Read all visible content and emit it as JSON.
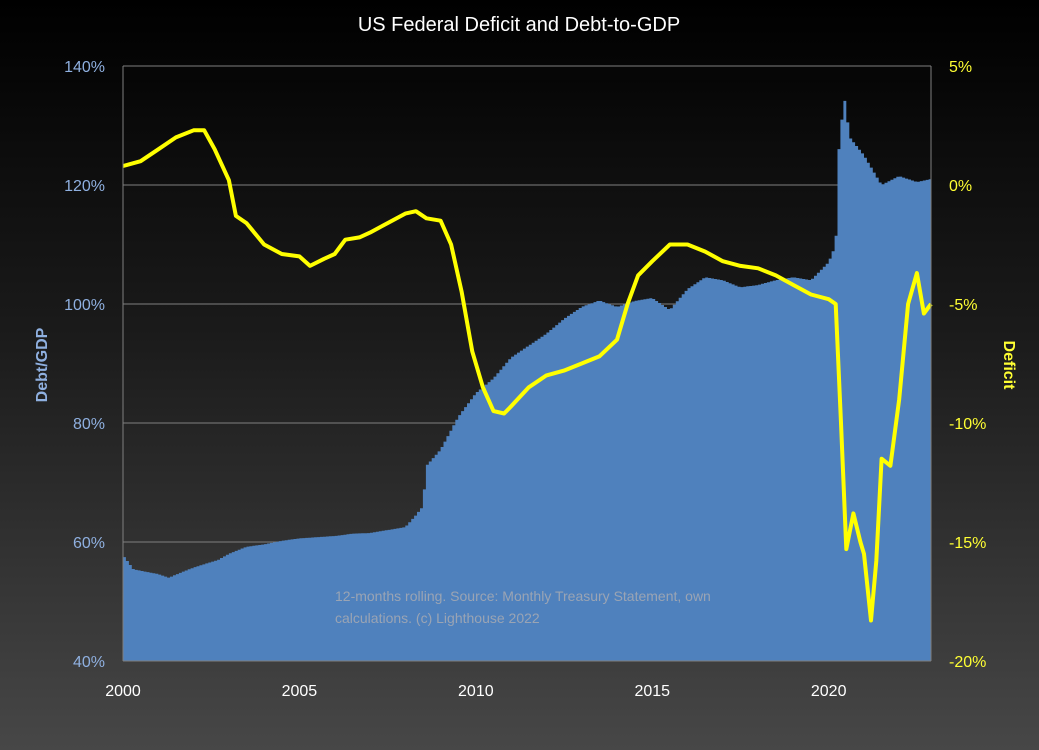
{
  "colors": {
    "debt_fill": "#4f81bd",
    "deficit_line": "#ffff00",
    "grid": "#7f7f7f",
    "left_axis_text": "#8fb0e0",
    "right_axis_text": "#ffff33"
  },
  "chart_data": {
    "type": "bar",
    "title": "US Federal Deficit and Debt-to-GDP",
    "ylabel": "Debt/GDP",
    "y2label": "Deficit",
    "annotation": [
      "12-months rolling. Source: Monthly Treasury Statement, own",
      "calculations. (c) Lighthouse 2022"
    ],
    "xlim": [
      2000,
      2022.9
    ],
    "ylim": [
      40,
      140
    ],
    "y2lim": [
      -20,
      5
    ],
    "x_ticks": [
      "2000",
      "2005",
      "2010",
      "2015",
      "2020"
    ],
    "y_ticks": [
      "40%",
      "60%",
      "80%",
      "100%",
      "120%",
      "140%"
    ],
    "y2_ticks": [
      "-20%",
      "-15%",
      "-10%",
      "-5%",
      "0%",
      "5%"
    ],
    "grid": "horizontal",
    "series": [
      {
        "name": "Debt/GDP",
        "axis": "left",
        "type": "bar",
        "unit": "%",
        "points": [
          [
            2000,
            57.8
          ],
          [
            2000.3,
            55.4
          ],
          [
            2001,
            54.6
          ],
          [
            2001.3,
            54.0
          ],
          [
            2001.7,
            55.0
          ],
          [
            2002,
            55.7
          ],
          [
            2002.7,
            57.0
          ],
          [
            2003,
            58.0
          ],
          [
            2003.5,
            59.2
          ],
          [
            2004,
            59.6
          ],
          [
            2004.5,
            60.2
          ],
          [
            2005,
            60.6
          ],
          [
            2005.5,
            60.8
          ],
          [
            2006,
            61.0
          ],
          [
            2006.5,
            61.4
          ],
          [
            2007,
            61.5
          ],
          [
            2007.5,
            62.0
          ],
          [
            2008,
            62.5
          ],
          [
            2008.3,
            64.5
          ],
          [
            2008.5,
            66.0
          ],
          [
            2008.6,
            72.8
          ],
          [
            2009,
            75.5
          ],
          [
            2009.5,
            81.0
          ],
          [
            2010,
            85.0
          ],
          [
            2010.5,
            87.5
          ],
          [
            2011,
            91.0
          ],
          [
            2011.5,
            93.0
          ],
          [
            2012,
            95.0
          ],
          [
            2012.5,
            97.5
          ],
          [
            2013,
            99.5
          ],
          [
            2013.5,
            100.6
          ],
          [
            2014,
            99.5
          ],
          [
            2014.5,
            100.5
          ],
          [
            2015,
            101.0
          ],
          [
            2015.5,
            99.0
          ],
          [
            2016,
            102.5
          ],
          [
            2016.5,
            104.5
          ],
          [
            2017,
            104.0
          ],
          [
            2017.5,
            102.8
          ],
          [
            2018,
            103.2
          ],
          [
            2018.5,
            104.0
          ],
          [
            2019,
            104.5
          ],
          [
            2019.5,
            104.0
          ],
          [
            2020,
            107.0
          ],
          [
            2020.2,
            110.0
          ],
          [
            2020.3,
            127.5
          ],
          [
            2020.45,
            134.5
          ],
          [
            2020.6,
            128.0
          ],
          [
            2021,
            125.0
          ],
          [
            2021.5,
            120.0
          ],
          [
            2022,
            121.5
          ],
          [
            2022.5,
            120.5
          ],
          [
            2022.9,
            121.0
          ]
        ]
      },
      {
        "name": "Deficit",
        "axis": "right",
        "type": "line",
        "unit": "%",
        "points": [
          [
            2000,
            0.8
          ],
          [
            2000.5,
            1.0
          ],
          [
            2001,
            1.5
          ],
          [
            2001.5,
            2.0
          ],
          [
            2002,
            2.3
          ],
          [
            2002.3,
            2.3
          ],
          [
            2002.6,
            1.5
          ],
          [
            2003,
            0.2
          ],
          [
            2003.2,
            -1.3
          ],
          [
            2003.5,
            -1.6
          ],
          [
            2004,
            -2.5
          ],
          [
            2004.5,
            -2.9
          ],
          [
            2005,
            -3.0
          ],
          [
            2005.3,
            -3.4
          ],
          [
            2005.7,
            -3.1
          ],
          [
            2006,
            -2.9
          ],
          [
            2006.3,
            -2.3
          ],
          [
            2006.7,
            -2.2
          ],
          [
            2007,
            -2.0
          ],
          [
            2007.5,
            -1.6
          ],
          [
            2008,
            -1.2
          ],
          [
            2008.3,
            -1.1
          ],
          [
            2008.6,
            -1.4
          ],
          [
            2009,
            -1.5
          ],
          [
            2009.3,
            -2.5
          ],
          [
            2009.6,
            -4.5
          ],
          [
            2009.9,
            -7.0
          ],
          [
            2010.2,
            -8.5
          ],
          [
            2010.5,
            -9.5
          ],
          [
            2010.8,
            -9.6
          ],
          [
            2011,
            -9.3
          ],
          [
            2011.5,
            -8.5
          ],
          [
            2012,
            -8.0
          ],
          [
            2012.5,
            -7.8
          ],
          [
            2013,
            -7.5
          ],
          [
            2013.5,
            -7.2
          ],
          [
            2014,
            -6.5
          ],
          [
            2014.3,
            -5.0
          ],
          [
            2014.6,
            -3.8
          ],
          [
            2015,
            -3.2
          ],
          [
            2015.5,
            -2.5
          ],
          [
            2016,
            -2.5
          ],
          [
            2016.5,
            -2.8
          ],
          [
            2017,
            -3.2
          ],
          [
            2017.5,
            -3.4
          ],
          [
            2018,
            -3.5
          ],
          [
            2018.5,
            -3.8
          ],
          [
            2019,
            -4.2
          ],
          [
            2019.5,
            -4.6
          ],
          [
            2020,
            -4.8
          ],
          [
            2020.2,
            -5.0
          ],
          [
            2020.35,
            -10.0
          ],
          [
            2020.5,
            -15.3
          ],
          [
            2020.7,
            -13.8
          ],
          [
            2020.9,
            -15.0
          ],
          [
            2021,
            -15.5
          ],
          [
            2021.2,
            -18.3
          ],
          [
            2021.35,
            -15.8
          ],
          [
            2021.5,
            -11.5
          ],
          [
            2021.75,
            -11.8
          ],
          [
            2022,
            -9.0
          ],
          [
            2022.25,
            -5.0
          ],
          [
            2022.5,
            -3.7
          ],
          [
            2022.7,
            -5.4
          ],
          [
            2022.9,
            -5.0
          ]
        ]
      }
    ]
  }
}
